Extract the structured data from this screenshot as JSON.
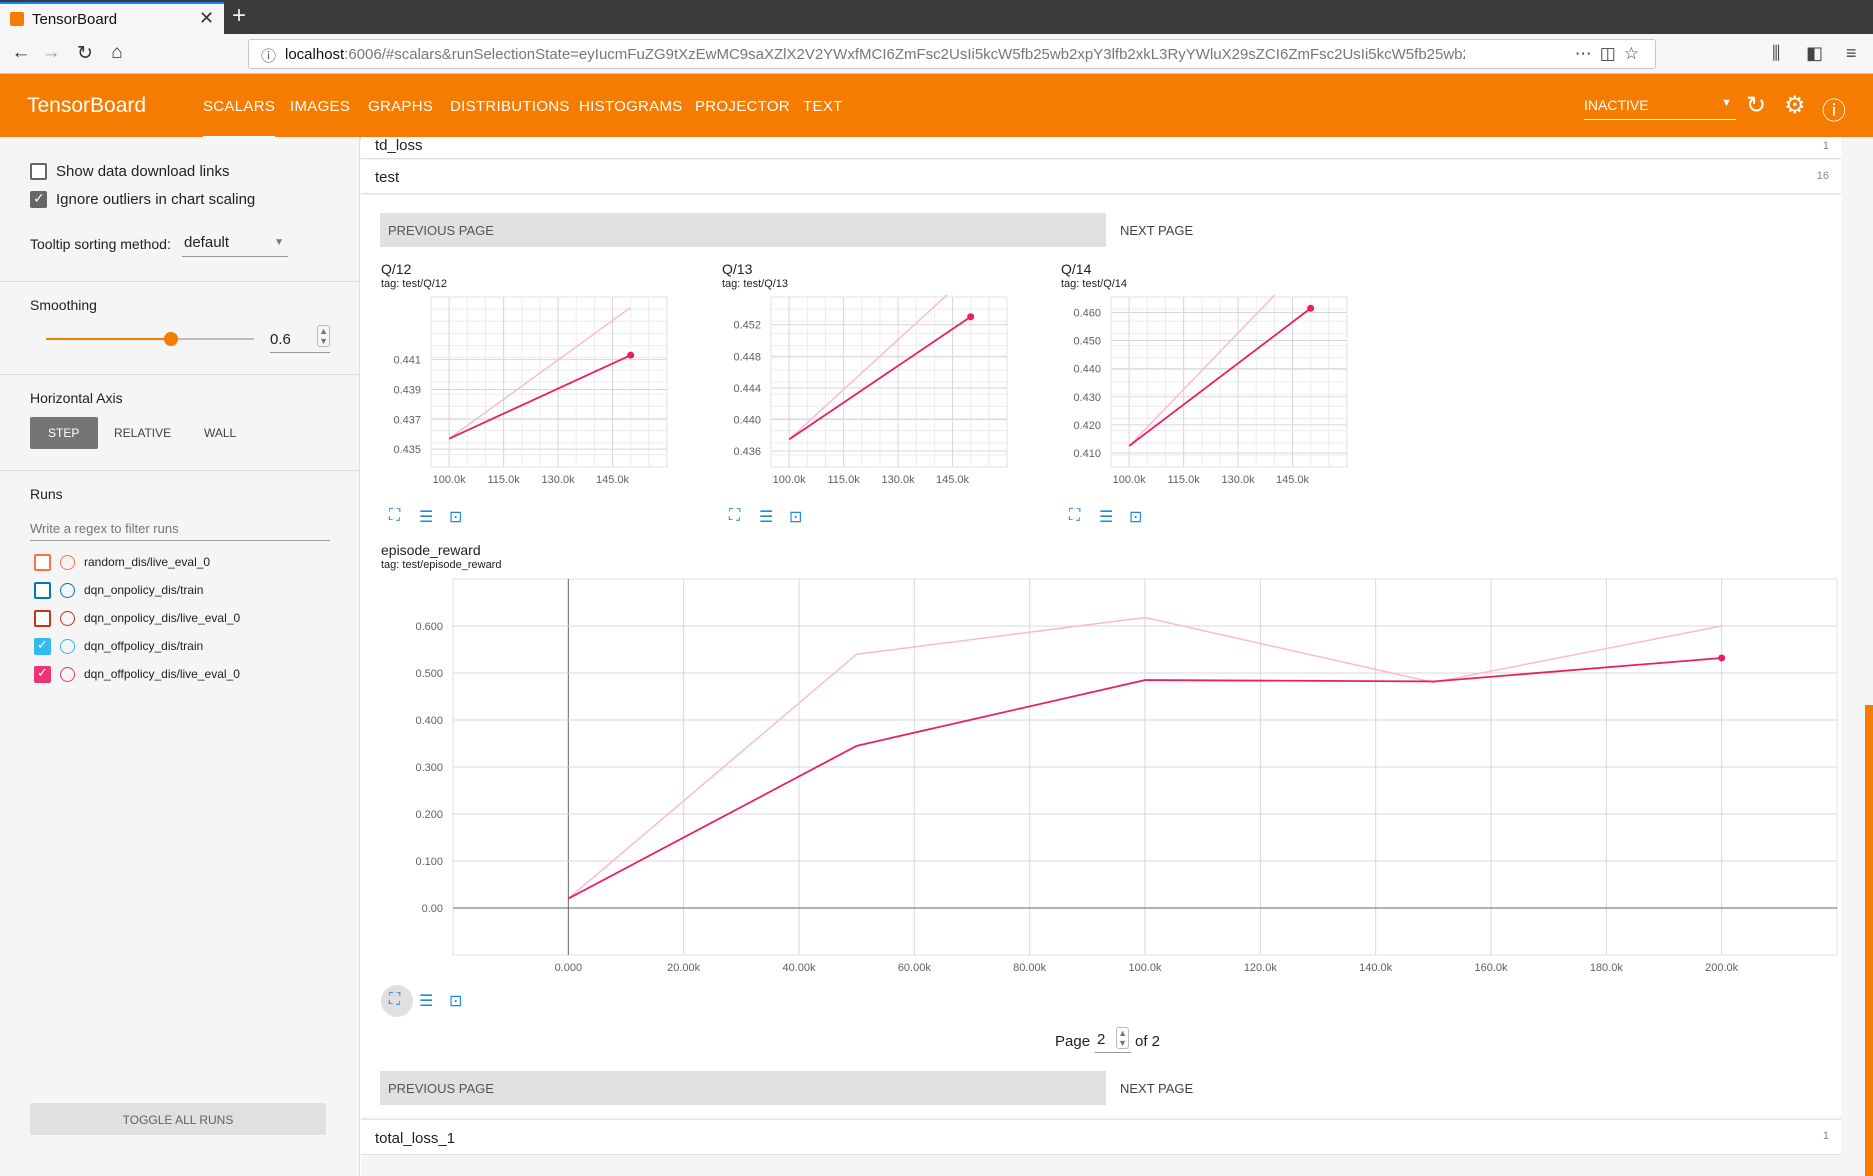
{
  "browser": {
    "tab_title": "TensorBoard",
    "url_host": "localhost",
    "url_rest": ":6006/#scalars&runSelectionState=eyIucmFuZG9tXzEwMC9saXZlX2V2YWxfMCI6ZmFsc2UsIi5kcW5fb25wb2xpY3lfb2xkL3RyYWluX29sZCI6ZmFsc2UsIi5kcW5fb25wb2xpY3lfb2x"
  },
  "header": {
    "brand": "TensorBoard",
    "tabs": [
      "SCALARS",
      "IMAGES",
      "GRAPHS",
      "DISTRIBUTIONS",
      "HISTOGRAMS",
      "PROJECTOR",
      "TEXT"
    ],
    "active_tab": "SCALARS",
    "run_state": "INACTIVE"
  },
  "sidebar": {
    "show_download_links": "Show data download links",
    "ignore_outliers": "Ignore outliers in chart scaling",
    "tooltip_label": "Tooltip sorting method:",
    "tooltip_value": "default",
    "smoothing_label": "Smoothing",
    "smoothing_value": "0.6",
    "smoothing_fraction": 0.6,
    "horizontal_axis_label": "Horizontal Axis",
    "axis_options": [
      "STEP",
      "RELATIVE",
      "WALL"
    ],
    "axis_selected": "STEP",
    "runs_label": "Runs",
    "runs_filter_placeholder": "Write a regex to filter runs",
    "runs": [
      {
        "name": "random_dis/live_eval_0",
        "color": "#ff7043",
        "checked": false
      },
      {
        "name": "dqn_onpolicy_dis/train",
        "color": "#0077bb",
        "checked": false
      },
      {
        "name": "dqn_onpolicy_dis/live_eval_0",
        "color": "#cc3311",
        "checked": false
      },
      {
        "name": "dqn_offpolicy_dis/train",
        "color": "#33bbee",
        "checked": true
      },
      {
        "name": "dqn_offpolicy_dis/live_eval_0",
        "color": "#ee3377",
        "checked": true
      }
    ],
    "toggle_all": "TOGGLE ALL RUNS"
  },
  "main": {
    "top_rows": [
      {
        "name": "td_loss",
        "count": "1"
      },
      {
        "name": "test",
        "count": "16"
      }
    ],
    "bottom_row": {
      "name": "total_loss_1",
      "count": "1"
    },
    "previous_page": "PREVIOUS PAGE",
    "next_page": "NEXT PAGE",
    "pager": {
      "prefix": "Page",
      "current": "2",
      "suffix": "of 2"
    }
  },
  "chart_data": [
    {
      "type": "line",
      "title": "Q/12",
      "tag": "tag: test/Q/12",
      "x_ticks": [
        "100.0k",
        "115.0k",
        "130.0k",
        "145.0k"
      ],
      "y_ticks": [
        "0.441",
        "0.439",
        "0.437",
        "0.435"
      ],
      "series": [
        {
          "name": "dqn_offpolicy_dis/live_eval_0",
          "smoothed": [
            [
              100000,
              0.4357
            ],
            [
              150000,
              0.4413
            ]
          ],
          "raw": [
            [
              100000,
              0.4357
            ],
            [
              150000,
              0.4445
            ]
          ]
        }
      ]
    },
    {
      "type": "line",
      "title": "Q/13",
      "tag": "tag: test/Q/13",
      "x_ticks": [
        "100.0k",
        "115.0k",
        "130.0k",
        "145.0k"
      ],
      "y_ticks": [
        "0.452",
        "0.448",
        "0.444",
        "0.440",
        "0.436"
      ],
      "series": [
        {
          "name": "dqn_offpolicy_dis/live_eval_0",
          "smoothed": [
            [
              100000,
              0.4375
            ],
            [
              150000,
              0.453
            ]
          ],
          "raw": [
            [
              100000,
              0.4375
            ],
            [
              150000,
              0.4585
            ]
          ]
        }
      ]
    },
    {
      "type": "line",
      "title": "Q/14",
      "tag": "tag: test/Q/14",
      "x_ticks": [
        "100.0k",
        "115.0k",
        "130.0k",
        "145.0k"
      ],
      "y_ticks": [
        "0.460",
        "0.450",
        "0.440",
        "0.430",
        "0.420",
        "0.410"
      ],
      "series": [
        {
          "name": "dqn_offpolicy_dis/live_eval_0",
          "smoothed": [
            [
              100000,
              0.4125
            ],
            [
              150000,
              0.4615
            ]
          ],
          "raw": [
            [
              100000,
              0.4125
            ],
            [
              150000,
              0.4795
            ]
          ]
        }
      ]
    },
    {
      "type": "line",
      "title": "episode_reward",
      "tag": "tag: test/episode_reward",
      "x_ticks": [
        "0.000",
        "20.00k",
        "40.00k",
        "60.00k",
        "80.00k",
        "100.0k",
        "120.0k",
        "140.0k",
        "160.0k",
        "180.0k",
        "200.0k"
      ],
      "y_ticks": [
        "0.600",
        "0.500",
        "0.400",
        "0.300",
        "0.200",
        "0.100",
        "0.00"
      ],
      "series": [
        {
          "name": "dqn_offpolicy_dis/live_eval_0",
          "smoothed": [
            [
              0,
              0.02
            ],
            [
              50000,
              0.345
            ],
            [
              100000,
              0.485
            ],
            [
              150000,
              0.482
            ],
            [
              200000,
              0.532
            ]
          ],
          "raw": [
            [
              0,
              0.02
            ],
            [
              50000,
              0.54
            ],
            [
              100000,
              0.618
            ],
            [
              150000,
              0.48
            ],
            [
              200000,
              0.6
            ]
          ]
        }
      ]
    }
  ]
}
